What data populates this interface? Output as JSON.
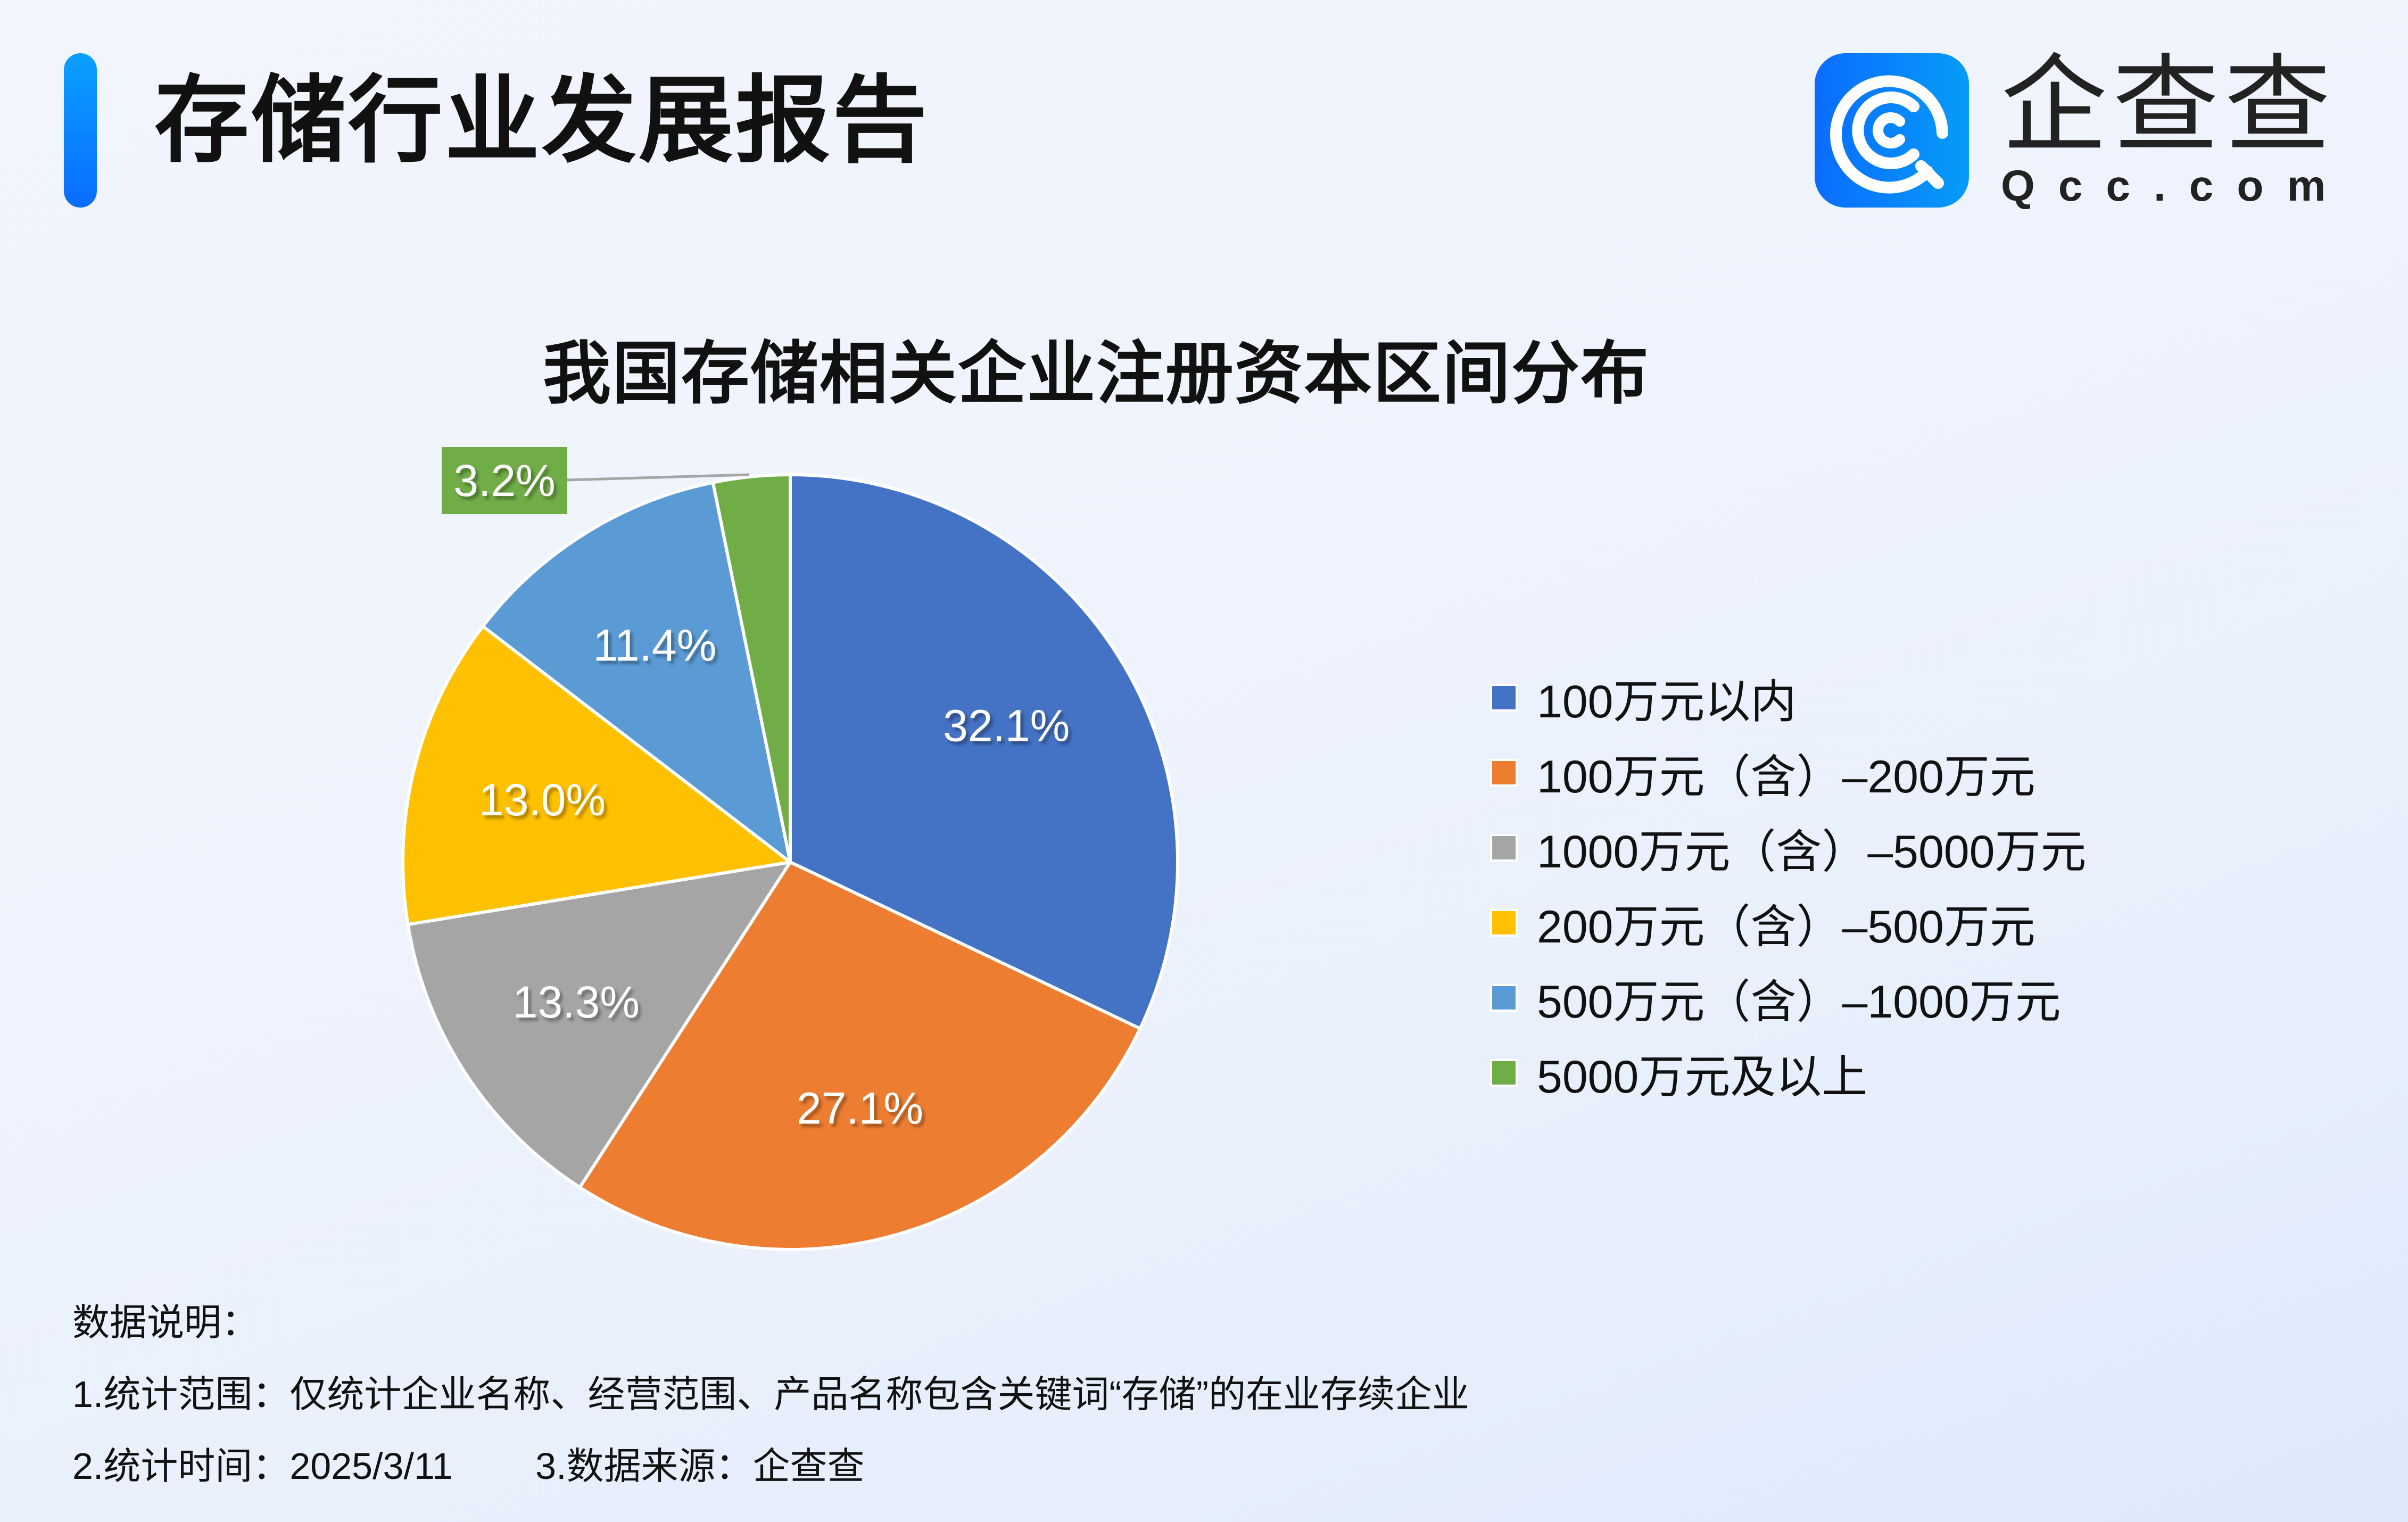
{
  "header": {
    "title": "存储行业发展报告",
    "accent_color": "#0a80ff"
  },
  "logo": {
    "icon": "qcc-logo-icon",
    "name_cn": "企查查",
    "name_en": "Qcc.com"
  },
  "chart_data": {
    "type": "pie",
    "title": "我国存储相关企业注册资本区间分布",
    "start_angle": "12 o'clock",
    "direction": "clockwise",
    "categories": [
      "100万元以内",
      "100万元（含）-200万元",
      "1000万元（含）-5000万元",
      "200万元（含）-500万元",
      "500万元（含）-1000万元",
      "5000万元及以上"
    ],
    "values": [
      32.1,
      27.1,
      13.3,
      13.0,
      11.4,
      3.2
    ],
    "labels": [
      "32.1%",
      "27.1%",
      "13.3%",
      "13.0%",
      "11.4%",
      "3.2%"
    ],
    "colors": [
      "#4472c4",
      "#ed7d31",
      "#a5a5a5",
      "#ffc000",
      "#5b9bd5",
      "#70ad47"
    ],
    "unit": "%",
    "legend_position": "right"
  },
  "legend": {
    "items": [
      {
        "label": "100万元以内",
        "color": "#4472c4"
      },
      {
        "label": "100万元（含）–200万元",
        "color": "#ed7d31"
      },
      {
        "label": "1000万元（含）–5000万元",
        "color": "#a5a5a5"
      },
      {
        "label": "200万元（含）–500万元",
        "color": "#ffc000"
      },
      {
        "label": "500万元（含）–1000万元",
        "color": "#5b9bd5"
      },
      {
        "label": "5000万元及以上",
        "color": "#70ad47"
      }
    ]
  },
  "notes": {
    "heading": "数据说明：",
    "line1": "1.统计范围：仅统计企业名称、经营范围、产品名称包含关键词“存储”的在业存续企业",
    "line2": "2.统计时间：2025/3/11        3.数据来源：企查查"
  }
}
